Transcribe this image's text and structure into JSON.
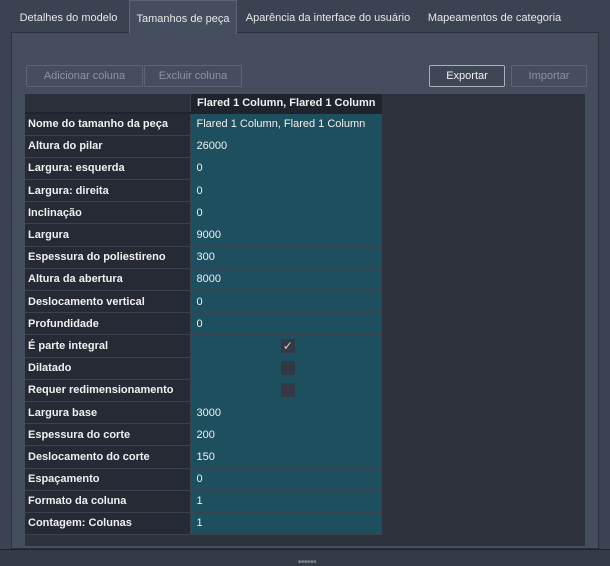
{
  "tabs": [
    "Detalhes do modelo",
    "Tamanhos de peça",
    "Aparência da interface do usuário",
    "Mapeamentos de categoria"
  ],
  "active_tab": 1,
  "toolbar": {
    "add": "Adicionar coluna",
    "delete": "Excluir coluna",
    "export": "Exportar",
    "import": "Importar"
  },
  "table": {
    "column_header": "Flared 1 Column, Flared 1 Column",
    "rows": [
      {
        "label": "Nome do tamanho da peça",
        "value": "Flared 1 Column, Flared 1 Column"
      },
      {
        "label": "Altura do pilar",
        "value": "26000"
      },
      {
        "label": "Largura: esquerda",
        "value": "0"
      },
      {
        "label": "Largura: direita",
        "value": "0"
      },
      {
        "label": "Inclinação",
        "value": "0"
      },
      {
        "label": "Largura",
        "value": "9000"
      },
      {
        "label": "Espessura do poliestireno",
        "value": "300"
      },
      {
        "label": "Altura da abertura",
        "value": "8000"
      },
      {
        "label": "Deslocamento vertical",
        "value": "0"
      },
      {
        "label": "Profundidade",
        "value": "0"
      },
      {
        "label": "É parte integral",
        "checkbox": true,
        "checked": true
      },
      {
        "label": "Dilatado",
        "checkbox": true,
        "checked": false
      },
      {
        "label": "Requer redimensionamento",
        "checkbox": true,
        "checked": false
      },
      {
        "label": "Largura base",
        "value": "3000"
      },
      {
        "label": "Espessura do corte",
        "value": "200"
      },
      {
        "label": "Deslocamento do corte",
        "value": "150"
      },
      {
        "label": "Espaçamento",
        "value": "0"
      },
      {
        "label": "Formato da coluna",
        "value": "1"
      },
      {
        "label": "Contagem: Colunas",
        "value": "1"
      }
    ]
  }
}
